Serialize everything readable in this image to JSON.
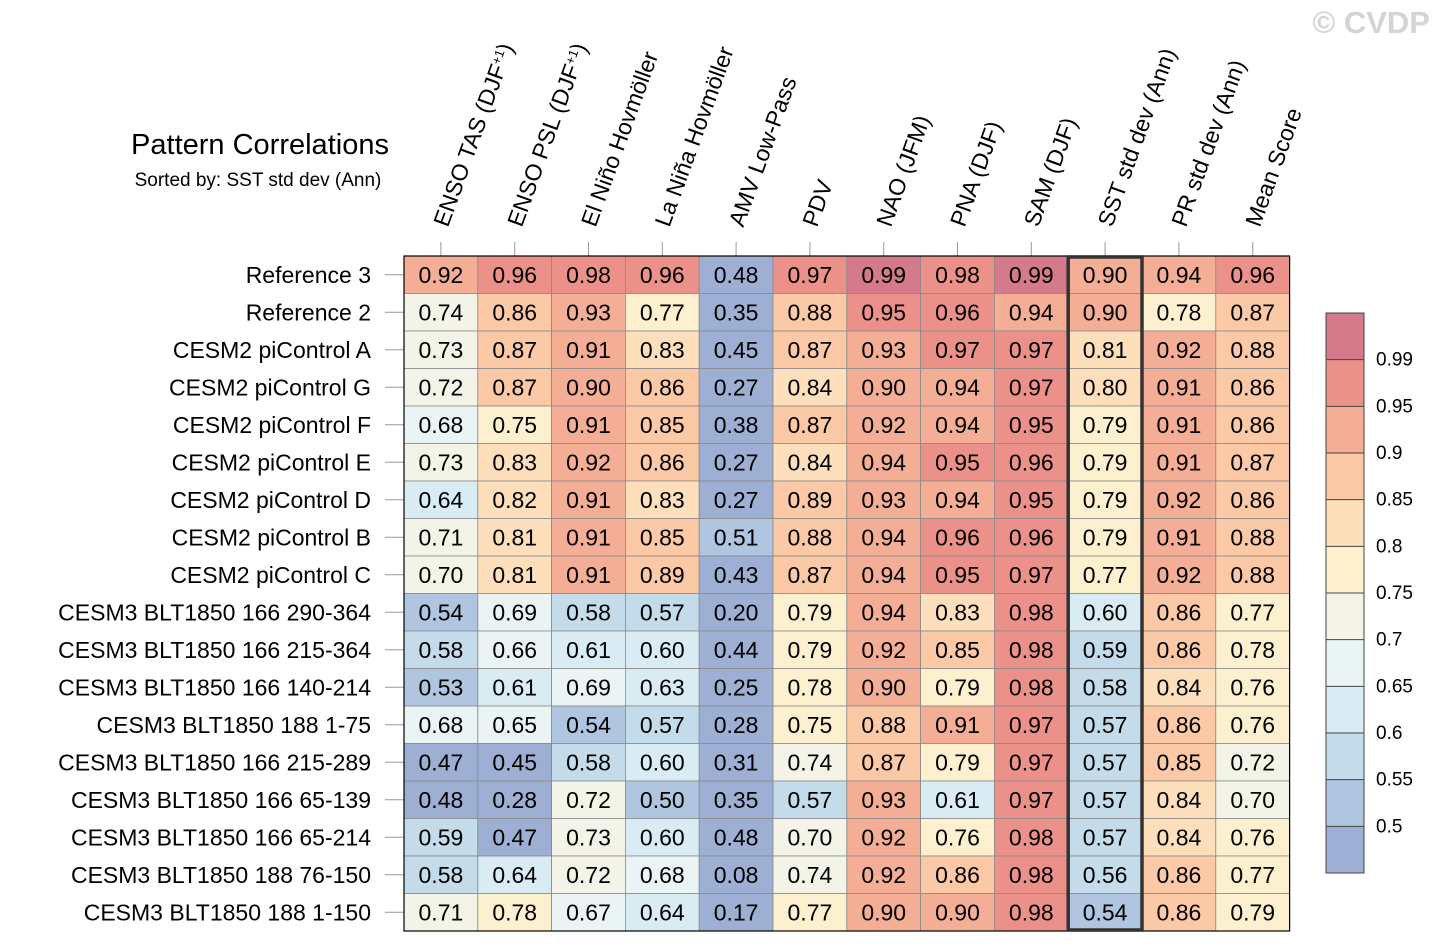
{
  "watermark": "© CVDP",
  "chart_data": {
    "type": "heatmap",
    "title": "Pattern Correlations",
    "subtitle": "Sorted by: SST std dev (Ann)",
    "highlighted_column": "SST std dev (Ann)",
    "columns": [
      "ENSO TAS (DJF+1)",
      "ENSO PSL (DJF+1)",
      "El Niño Hovmöller",
      "La Niña Hovmöller",
      "AMV Low-Pass",
      "PDV",
      "NAO (JFM)",
      "PNA (DJF)",
      "SAM (DJF)",
      "SST std dev (Ann)",
      "PR std dev (Ann)",
      "Mean Score"
    ],
    "rows": [
      {
        "name": "Reference 3",
        "values": [
          "0.92",
          "0.96",
          "0.98",
          "0.96",
          "0.48",
          "0.97",
          "0.99",
          "0.98",
          "0.99",
          "0.90",
          "0.94",
          "0.96"
        ]
      },
      {
        "name": "Reference 2",
        "values": [
          "0.74",
          "0.86",
          "0.93",
          "0.77",
          "0.35",
          "0.88",
          "0.95",
          "0.96",
          "0.94",
          "0.90",
          "0.78",
          "0.87"
        ]
      },
      {
        "name": "CESM2 piControl A",
        "values": [
          "0.73",
          "0.87",
          "0.91",
          "0.83",
          "0.45",
          "0.87",
          "0.93",
          "0.97",
          "0.97",
          "0.81",
          "0.92",
          "0.88"
        ]
      },
      {
        "name": "CESM2 piControl G",
        "values": [
          "0.72",
          "0.87",
          "0.90",
          "0.86",
          "0.27",
          "0.84",
          "0.90",
          "0.94",
          "0.97",
          "0.80",
          "0.91",
          "0.86"
        ]
      },
      {
        "name": "CESM2 piControl F",
        "values": [
          "0.68",
          "0.75",
          "0.91",
          "0.85",
          "0.38",
          "0.87",
          "0.92",
          "0.94",
          "0.95",
          "0.79",
          "0.91",
          "0.86"
        ]
      },
      {
        "name": "CESM2 piControl E",
        "values": [
          "0.73",
          "0.83",
          "0.92",
          "0.86",
          "0.27",
          "0.84",
          "0.94",
          "0.95",
          "0.96",
          "0.79",
          "0.91",
          "0.87"
        ]
      },
      {
        "name": "CESM2 piControl D",
        "values": [
          "0.64",
          "0.82",
          "0.91",
          "0.83",
          "0.27",
          "0.89",
          "0.93",
          "0.94",
          "0.95",
          "0.79",
          "0.92",
          "0.86"
        ]
      },
      {
        "name": "CESM2 piControl B",
        "values": [
          "0.71",
          "0.81",
          "0.91",
          "0.85",
          "0.51",
          "0.88",
          "0.94",
          "0.96",
          "0.96",
          "0.79",
          "0.91",
          "0.88"
        ]
      },
      {
        "name": "CESM2 piControl C",
        "values": [
          "0.70",
          "0.81",
          "0.91",
          "0.89",
          "0.43",
          "0.87",
          "0.94",
          "0.95",
          "0.97",
          "0.77",
          "0.92",
          "0.88"
        ]
      },
      {
        "name": "CESM3 BLT1850 166 290-364",
        "values": [
          "0.54",
          "0.69",
          "0.58",
          "0.57",
          "0.20",
          "0.79",
          "0.94",
          "0.83",
          "0.98",
          "0.60",
          "0.86",
          "0.77"
        ]
      },
      {
        "name": "CESM3 BLT1850 166 215-364",
        "values": [
          "0.58",
          "0.66",
          "0.61",
          "0.60",
          "0.44",
          "0.79",
          "0.92",
          "0.85",
          "0.98",
          "0.59",
          "0.86",
          "0.78"
        ]
      },
      {
        "name": "CESM3 BLT1850 166 140-214",
        "values": [
          "0.53",
          "0.61",
          "0.69",
          "0.63",
          "0.25",
          "0.78",
          "0.90",
          "0.79",
          "0.98",
          "0.58",
          "0.84",
          "0.76"
        ]
      },
      {
        "name": "CESM3 BLT1850 188 1-75",
        "values": [
          "0.68",
          "0.65",
          "0.54",
          "0.57",
          "0.28",
          "0.75",
          "0.88",
          "0.91",
          "0.97",
          "0.57",
          "0.86",
          "0.76"
        ]
      },
      {
        "name": "CESM3 BLT1850 166 215-289",
        "values": [
          "0.47",
          "0.45",
          "0.58",
          "0.60",
          "0.31",
          "0.74",
          "0.87",
          "0.79",
          "0.97",
          "0.57",
          "0.85",
          "0.72"
        ]
      },
      {
        "name": "CESM3 BLT1850 166 65-139",
        "values": [
          "0.48",
          "0.28",
          "0.72",
          "0.50",
          "0.35",
          "0.57",
          "0.93",
          "0.61",
          "0.97",
          "0.57",
          "0.84",
          "0.70"
        ]
      },
      {
        "name": "CESM3 BLT1850 166 65-214",
        "values": [
          "0.59",
          "0.47",
          "0.73",
          "0.60",
          "0.48",
          "0.70",
          "0.92",
          "0.76",
          "0.98",
          "0.57",
          "0.84",
          "0.76"
        ]
      },
      {
        "name": "CESM3 BLT1850 188 76-150",
        "values": [
          "0.58",
          "0.64",
          "0.72",
          "0.68",
          "0.08",
          "0.74",
          "0.92",
          "0.86",
          "0.98",
          "0.56",
          "0.86",
          "0.77"
        ]
      },
      {
        "name": "CESM3 BLT1850 188 1-150",
        "values": [
          "0.71",
          "0.78",
          "0.67",
          "0.64",
          "0.17",
          "0.77",
          "0.90",
          "0.90",
          "0.98",
          "0.54",
          "0.86",
          "0.79"
        ]
      }
    ],
    "colorbar": {
      "levels": [
        "0.5",
        "0.55",
        "0.6",
        "0.65",
        "0.7",
        "0.75",
        "0.8",
        "0.85",
        "0.9",
        "0.95",
        "0.99"
      ],
      "colors": [
        "#9dafd3",
        "#afc5e0",
        "#c4dbea",
        "#d9ebf3",
        "#eaf4f5",
        "#f4f3e8",
        "#fdf0cf",
        "#fde0bb",
        "#fbc9a6",
        "#f4ae95",
        "#eb9189",
        "#d47a8a"
      ]
    }
  }
}
